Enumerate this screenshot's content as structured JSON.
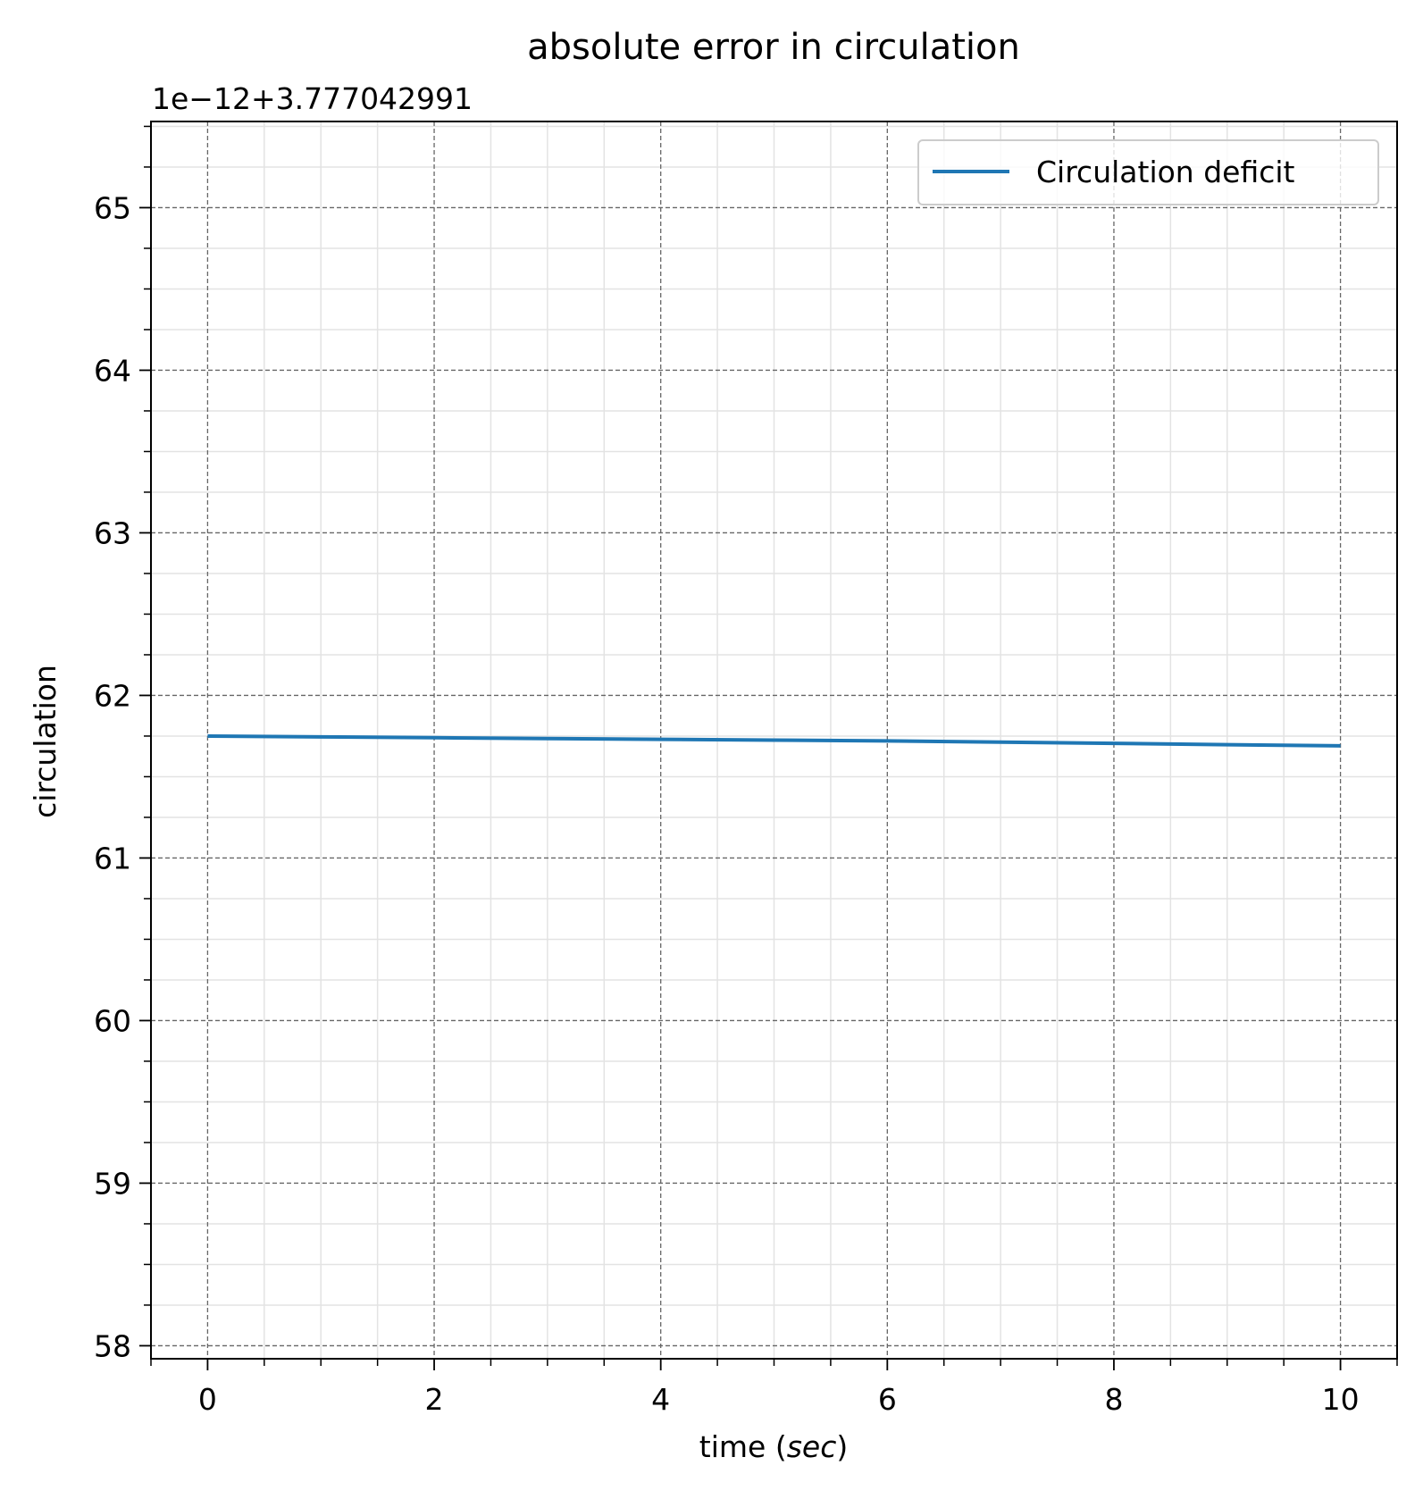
{
  "chart_data": {
    "type": "line",
    "title": "absolute error in circulation",
    "offset_label": "1e−12+3.777042991",
    "xlabel_prefix": "time (",
    "xlabel_italic": "sec",
    "xlabel_suffix": ")",
    "ylabel": "circulation",
    "xlim": [
      -0.5,
      10.5
    ],
    "ylim": [
      57.92,
      65.53
    ],
    "xticks": [
      0,
      2,
      4,
      6,
      8,
      10
    ],
    "xtick_labels": [
      "0",
      "2",
      "4",
      "6",
      "8",
      "10"
    ],
    "yticks": [
      58,
      59,
      60,
      61,
      62,
      63,
      64,
      65
    ],
    "ytick_labels": [
      "58",
      "59",
      "60",
      "61",
      "62",
      "63",
      "64",
      "65"
    ],
    "x_minor_step": 0.5,
    "y_minor_step": 0.25,
    "grid": true,
    "legend_position": "top-right",
    "series": [
      {
        "name": "Circulation deficit",
        "color": "#1f77b4",
        "x": [
          0,
          1,
          2,
          3,
          4,
          5,
          6,
          7,
          8,
          9,
          10
        ],
        "y": [
          61.75,
          61.745,
          61.74,
          61.735,
          61.73,
          61.725,
          61.72,
          61.713,
          61.705,
          61.697,
          61.69
        ]
      }
    ]
  }
}
